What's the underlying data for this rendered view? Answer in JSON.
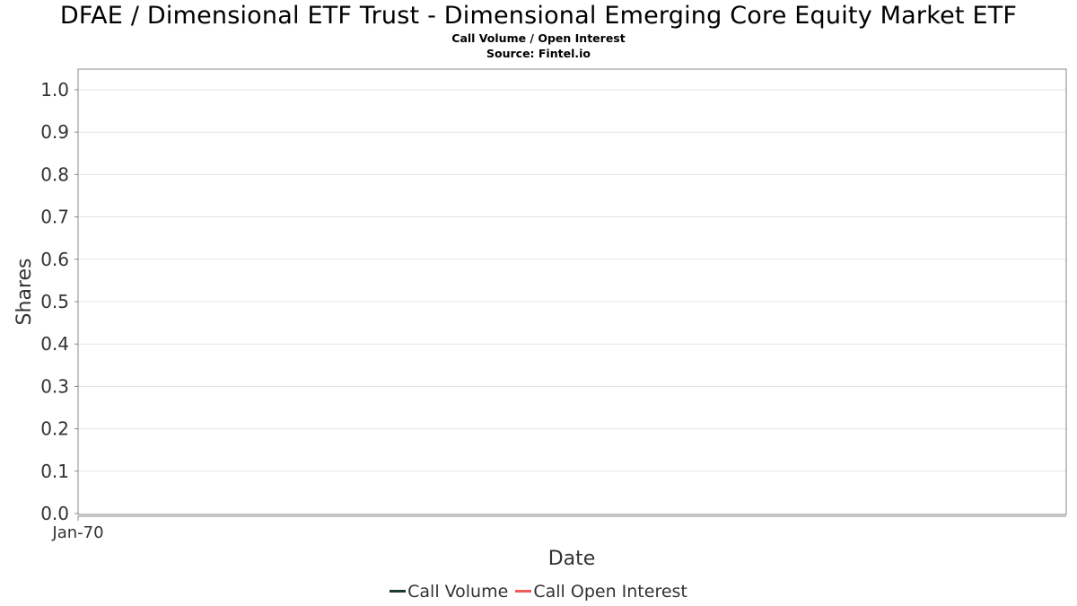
{
  "chart_data": {
    "type": "line",
    "title": "DFAE / Dimensional ETF Trust - Dimensional Emerging Core Equity Market ETF",
    "subtitle": "Call Volume / Open Interest",
    "source": "Source: Fintel.io",
    "xlabel": "Date",
    "ylabel": "Shares",
    "x_ticks": [
      "Jan-70"
    ],
    "y_ticks": [
      "0.0",
      "0.1",
      "0.2",
      "0.3",
      "0.4",
      "0.5",
      "0.6",
      "0.7",
      "0.8",
      "0.9",
      "1.0"
    ],
    "ylim": [
      0,
      1.05
    ],
    "grid": true,
    "legend_position": "bottom",
    "series": [
      {
        "name": "Call Volume",
        "color": "#1b3a2a",
        "values": []
      },
      {
        "name": "Call Open Interest",
        "color": "#f05a5a",
        "values": []
      }
    ]
  }
}
